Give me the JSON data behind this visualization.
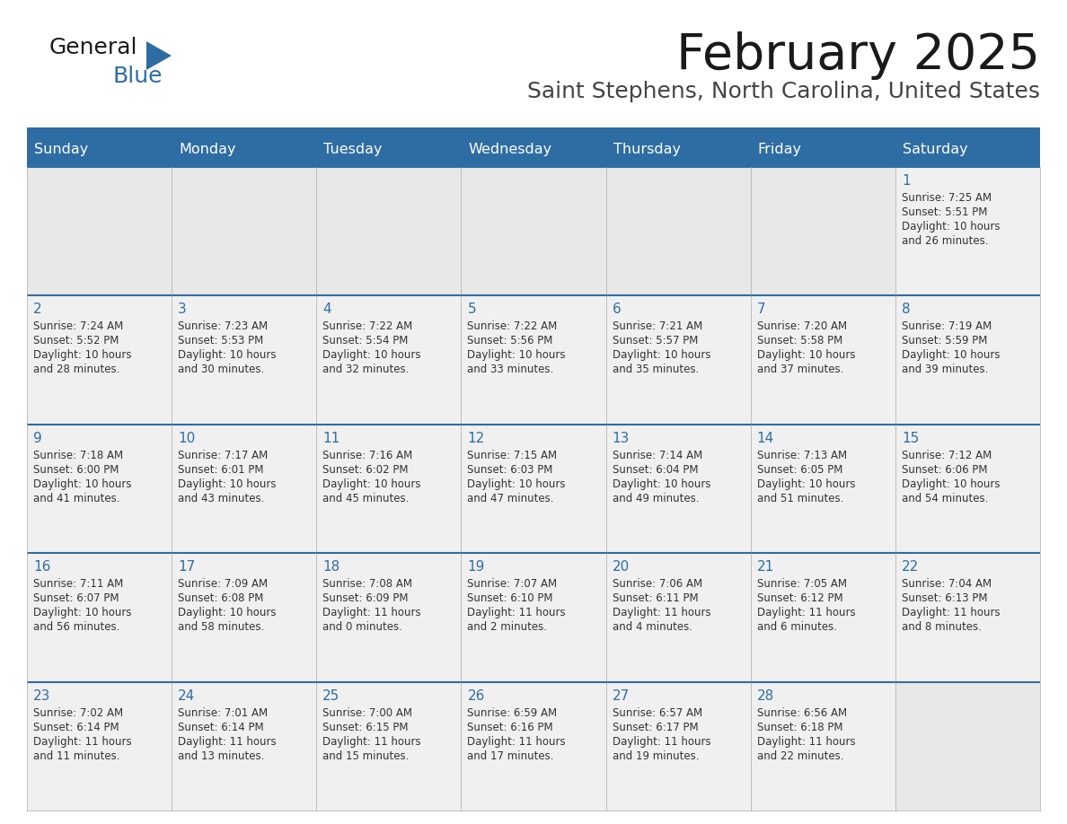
{
  "title": "February 2025",
  "subtitle": "Saint Stephens, North Carolina, United States",
  "days_of_week": [
    "Sunday",
    "Monday",
    "Tuesday",
    "Wednesday",
    "Thursday",
    "Friday",
    "Saturday"
  ],
  "header_bg": "#2E6DA4",
  "header_text": "#FFFFFF",
  "cell_bg_filled": "#F0F0F0",
  "cell_bg_empty": "#E8E8E8",
  "cell_border": "#AAAAAA",
  "row_border": "#2E6DA4",
  "day_num_color": "#2E6DA4",
  "info_text_color": "#333333",
  "bg_color": "#FFFFFF",
  "title_color": "#1a1a1a",
  "subtitle_color": "#444444",
  "logo_general_color": "#1a1a1a",
  "logo_blue_color": "#2E6DA4",
  "logo_triangle_color": "#2E6DA4",
  "weeks": [
    [
      {
        "day": null,
        "sunrise": null,
        "sunset": null,
        "daylight": null
      },
      {
        "day": null,
        "sunrise": null,
        "sunset": null,
        "daylight": null
      },
      {
        "day": null,
        "sunrise": null,
        "sunset": null,
        "daylight": null
      },
      {
        "day": null,
        "sunrise": null,
        "sunset": null,
        "daylight": null
      },
      {
        "day": null,
        "sunrise": null,
        "sunset": null,
        "daylight": null
      },
      {
        "day": null,
        "sunrise": null,
        "sunset": null,
        "daylight": null
      },
      {
        "day": 1,
        "sunrise": "7:25 AM",
        "sunset": "5:51 PM",
        "daylight": "10 hours\nand 26 minutes."
      }
    ],
    [
      {
        "day": 2,
        "sunrise": "7:24 AM",
        "sunset": "5:52 PM",
        "daylight": "10 hours\nand 28 minutes."
      },
      {
        "day": 3,
        "sunrise": "7:23 AM",
        "sunset": "5:53 PM",
        "daylight": "10 hours\nand 30 minutes."
      },
      {
        "day": 4,
        "sunrise": "7:22 AM",
        "sunset": "5:54 PM",
        "daylight": "10 hours\nand 32 minutes."
      },
      {
        "day": 5,
        "sunrise": "7:22 AM",
        "sunset": "5:56 PM",
        "daylight": "10 hours\nand 33 minutes."
      },
      {
        "day": 6,
        "sunrise": "7:21 AM",
        "sunset": "5:57 PM",
        "daylight": "10 hours\nand 35 minutes."
      },
      {
        "day": 7,
        "sunrise": "7:20 AM",
        "sunset": "5:58 PM",
        "daylight": "10 hours\nand 37 minutes."
      },
      {
        "day": 8,
        "sunrise": "7:19 AM",
        "sunset": "5:59 PM",
        "daylight": "10 hours\nand 39 minutes."
      }
    ],
    [
      {
        "day": 9,
        "sunrise": "7:18 AM",
        "sunset": "6:00 PM",
        "daylight": "10 hours\nand 41 minutes."
      },
      {
        "day": 10,
        "sunrise": "7:17 AM",
        "sunset": "6:01 PM",
        "daylight": "10 hours\nand 43 minutes."
      },
      {
        "day": 11,
        "sunrise": "7:16 AM",
        "sunset": "6:02 PM",
        "daylight": "10 hours\nand 45 minutes."
      },
      {
        "day": 12,
        "sunrise": "7:15 AM",
        "sunset": "6:03 PM",
        "daylight": "10 hours\nand 47 minutes."
      },
      {
        "day": 13,
        "sunrise": "7:14 AM",
        "sunset": "6:04 PM",
        "daylight": "10 hours\nand 49 minutes."
      },
      {
        "day": 14,
        "sunrise": "7:13 AM",
        "sunset": "6:05 PM",
        "daylight": "10 hours\nand 51 minutes."
      },
      {
        "day": 15,
        "sunrise": "7:12 AM",
        "sunset": "6:06 PM",
        "daylight": "10 hours\nand 54 minutes."
      }
    ],
    [
      {
        "day": 16,
        "sunrise": "7:11 AM",
        "sunset": "6:07 PM",
        "daylight": "10 hours\nand 56 minutes."
      },
      {
        "day": 17,
        "sunrise": "7:09 AM",
        "sunset": "6:08 PM",
        "daylight": "10 hours\nand 58 minutes."
      },
      {
        "day": 18,
        "sunrise": "7:08 AM",
        "sunset": "6:09 PM",
        "daylight": "11 hours\nand 0 minutes."
      },
      {
        "day": 19,
        "sunrise": "7:07 AM",
        "sunset": "6:10 PM",
        "daylight": "11 hours\nand 2 minutes."
      },
      {
        "day": 20,
        "sunrise": "7:06 AM",
        "sunset": "6:11 PM",
        "daylight": "11 hours\nand 4 minutes."
      },
      {
        "day": 21,
        "sunrise": "7:05 AM",
        "sunset": "6:12 PM",
        "daylight": "11 hours\nand 6 minutes."
      },
      {
        "day": 22,
        "sunrise": "7:04 AM",
        "sunset": "6:13 PM",
        "daylight": "11 hours\nand 8 minutes."
      }
    ],
    [
      {
        "day": 23,
        "sunrise": "7:02 AM",
        "sunset": "6:14 PM",
        "daylight": "11 hours\nand 11 minutes."
      },
      {
        "day": 24,
        "sunrise": "7:01 AM",
        "sunset": "6:14 PM",
        "daylight": "11 hours\nand 13 minutes."
      },
      {
        "day": 25,
        "sunrise": "7:00 AM",
        "sunset": "6:15 PM",
        "daylight": "11 hours\nand 15 minutes."
      },
      {
        "day": 26,
        "sunrise": "6:59 AM",
        "sunset": "6:16 PM",
        "daylight": "11 hours\nand 17 minutes."
      },
      {
        "day": 27,
        "sunrise": "6:57 AM",
        "sunset": "6:17 PM",
        "daylight": "11 hours\nand 19 minutes."
      },
      {
        "day": 28,
        "sunrise": "6:56 AM",
        "sunset": "6:18 PM",
        "daylight": "11 hours\nand 22 minutes."
      },
      {
        "day": null,
        "sunrise": null,
        "sunset": null,
        "daylight": null
      }
    ]
  ]
}
